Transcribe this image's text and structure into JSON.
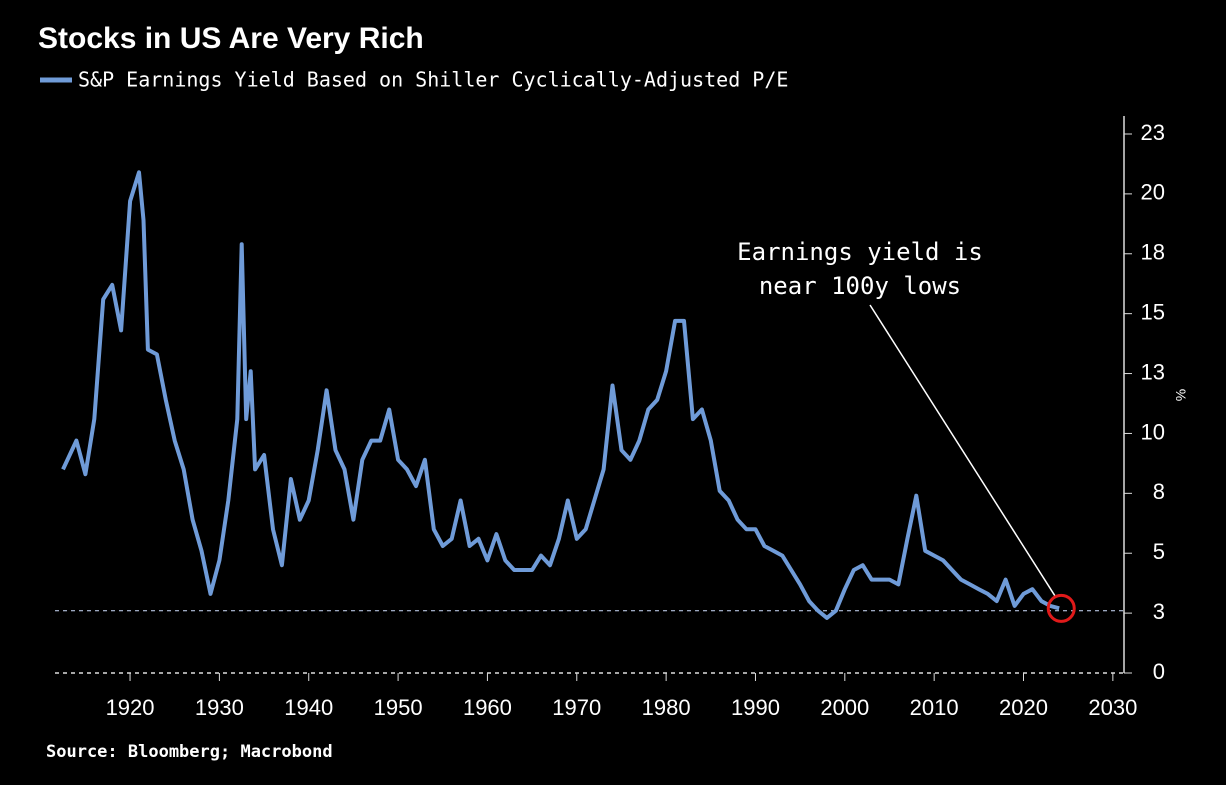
{
  "chart_data": {
    "type": "line",
    "title": "Stocks in US Are Very Rich",
    "source": "Source: Bloomberg; Macrobond",
    "y_label": "%",
    "series": [
      {
        "name": "S&P Earnings Yield Based on Shiller Cyclically-Adjusted P/E",
        "color": "#6f9bd8",
        "x": [
          1912.5,
          1914,
          1915,
          1916,
          1917,
          1918,
          1919,
          1920,
          1921,
          1921.5,
          1922,
          1923,
          1924,
          1925,
          1926,
          1927,
          1928,
          1929,
          1930,
          1931,
          1932,
          1932.5,
          1933,
          1933.5,
          1934,
          1935,
          1936,
          1937,
          1938,
          1939,
          1940,
          1941,
          1942,
          1943,
          1944,
          1945,
          1946,
          1947,
          1948,
          1949,
          1950,
          1951,
          1952,
          1953,
          1954,
          1955,
          1956,
          1957,
          1958,
          1959,
          1960,
          1961,
          1962,
          1963,
          1964,
          1965,
          1966,
          1967,
          1968,
          1969,
          1970,
          1971,
          1973,
          1974,
          1975,
          1976,
          1977,
          1978,
          1979,
          1980,
          1981,
          1982,
          1983,
          1984,
          1985,
          1986,
          1987,
          1988,
          1989,
          1990,
          1991,
          1992,
          1993,
          1994,
          1995,
          1996,
          1997,
          1998,
          1999,
          2000,
          2001,
          2002,
          2003,
          2004,
          2005,
          2006,
          2007,
          2008,
          2009,
          2010,
          2011,
          2012,
          2013,
          2014,
          2015,
          2016,
          2017,
          2018,
          2019,
          2020,
          2021,
          2022,
          2023,
          2024
        ],
        "values": [
          8.5,
          9.7,
          8.3,
          10.6,
          15.6,
          16.2,
          14.3,
          19.7,
          20.9,
          18.9,
          13.5,
          13.3,
          11.4,
          9.7,
          8.5,
          6.4,
          5.1,
          3.3,
          4.7,
          7.2,
          10.6,
          17.9,
          10.6,
          12.6,
          8.5,
          9.1,
          6.0,
          4.5,
          8.1,
          6.4,
          7.2,
          9.3,
          11.8,
          9.3,
          8.5,
          6.4,
          8.9,
          9.7,
          9.7,
          11.0,
          8.9,
          8.5,
          7.8,
          8.9,
          6.0,
          5.3,
          5.6,
          7.2,
          5.3,
          5.6,
          4.7,
          5.8,
          4.7,
          4.3,
          4.3,
          4.3,
          4.9,
          4.5,
          5.6,
          7.2,
          5.6,
          6.0,
          8.5,
          12.0,
          9.3,
          8.9,
          9.7,
          11.0,
          11.4,
          12.6,
          14.7,
          14.7,
          10.6,
          11.0,
          9.7,
          7.6,
          7.2,
          6.4,
          6.0,
          6.0,
          5.3,
          5.1,
          4.9,
          4.3,
          3.7,
          3.0,
          2.6,
          2.3,
          2.6,
          3.5,
          4.3,
          4.5,
          3.9,
          3.9,
          3.9,
          3.7,
          5.6,
          7.4,
          5.1,
          4.9,
          4.7,
          4.3,
          3.9,
          3.7,
          3.5,
          3.3,
          3.0,
          3.9,
          2.8,
          3.3,
          3.5,
          3.0,
          2.8,
          2.7
        ]
      }
    ],
    "annotation": [
      "Earnings yield is",
      "near 100y lows"
    ],
    "reference_line": 2.6,
    "xlim": [
      1911.6,
      2030.8
    ],
    "xticks": [
      1920,
      1930,
      1940,
      1950,
      1960,
      1970,
      1980,
      1990,
      2000,
      2010,
      2020,
      2030
    ],
    "ylim": [
      0,
      22.5
    ],
    "yticks": [
      0,
      {
        "value": 2.5,
        "label": "3"
      },
      5,
      {
        "value": 7.5,
        "label": "8"
      },
      10,
      {
        "value": 12.5,
        "label": "13"
      },
      15,
      {
        "value": 17.5,
        "label": "18"
      },
      20,
      {
        "value": 22.5,
        "label": "23"
      }
    ]
  }
}
